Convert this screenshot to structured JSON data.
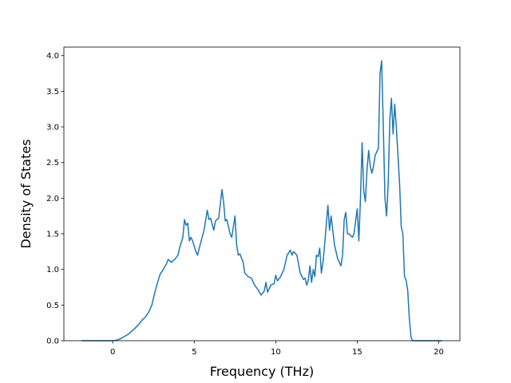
{
  "chart_data": {
    "type": "line",
    "xlabel": "Frequency (THz)",
    "ylabel": "Density of States",
    "x": [
      -1.9,
      0,
      0.2,
      0.5,
      0.8,
      1.0,
      1.3,
      1.6,
      1.8,
      2.0,
      2.2,
      2.4,
      2.5,
      2.7,
      2.9,
      3.1,
      3.3,
      3.4,
      3.6,
      3.8,
      4.0,
      4.1,
      4.3,
      4.4,
      4.5,
      4.6,
      4.7,
      4.8,
      4.9,
      5.1,
      5.2,
      5.4,
      5.6,
      5.8,
      5.9,
      6.0,
      6.2,
      6.3,
      6.5,
      6.7,
      6.8,
      6.9,
      7.0,
      7.2,
      7.3,
      7.5,
      7.6,
      7.7,
      7.8,
      8.0,
      8.1,
      8.3,
      8.5,
      8.7,
      8.9,
      9.1,
      9.3,
      9.4,
      9.5,
      9.7,
      9.9,
      10.0,
      10.1,
      10.3,
      10.5,
      10.7,
      10.9,
      11.0,
      11.1,
      11.3,
      11.5,
      11.7,
      11.8,
      11.9,
      12.0,
      12.1,
      12.2,
      12.3,
      12.4,
      12.5,
      12.6,
      12.7,
      12.8,
      12.9,
      13.0,
      13.2,
      13.3,
      13.4,
      13.6,
      13.8,
      14.0,
      14.1,
      14.2,
      14.3,
      14.4,
      14.5,
      14.7,
      14.8,
      15.0,
      15.1,
      15.2,
      15.3,
      15.4,
      15.5,
      15.6,
      15.7,
      15.8,
      15.9,
      16.0,
      16.1,
      16.3,
      16.4,
      16.5,
      16.6,
      16.7,
      16.8,
      16.9,
      17.0,
      17.1,
      17.2,
      17.3,
      17.4,
      17.5,
      17.6,
      17.7,
      17.8,
      17.9,
      18.0,
      18.1,
      18.2,
      18.3,
      18.4,
      20.2
    ],
    "series": [
      {
        "name": "DOS",
        "color": "#1f77b4",
        "values": [
          0,
          0,
          0.005,
          0.03,
          0.07,
          0.1,
          0.16,
          0.23,
          0.29,
          0.33,
          0.4,
          0.5,
          0.6,
          0.78,
          0.93,
          1.0,
          1.08,
          1.14,
          1.1,
          1.14,
          1.2,
          1.3,
          1.45,
          1.7,
          1.62,
          1.65,
          1.4,
          1.45,
          1.4,
          1.25,
          1.2,
          1.38,
          1.55,
          1.83,
          1.7,
          1.72,
          1.55,
          1.68,
          1.72,
          2.12,
          1.95,
          1.68,
          1.7,
          1.5,
          1.45,
          1.75,
          1.35,
          1.2,
          1.22,
          1.1,
          0.95,
          0.9,
          0.88,
          0.78,
          0.72,
          0.64,
          0.7,
          0.82,
          0.68,
          0.78,
          0.8,
          0.92,
          0.84,
          0.9,
          1.0,
          1.2,
          1.27,
          1.2,
          1.25,
          1.2,
          0.95,
          0.86,
          0.88,
          0.78,
          0.85,
          1.05,
          0.82,
          1.0,
          0.9,
          1.2,
          1.18,
          1.3,
          0.95,
          1.1,
          1.35,
          1.9,
          1.55,
          1.75,
          1.35,
          1.15,
          1.05,
          1.2,
          1.7,
          1.8,
          1.5,
          1.5,
          1.45,
          1.5,
          1.85,
          1.4,
          2.0,
          2.78,
          2.1,
          1.95,
          2.4,
          2.67,
          2.45,
          2.35,
          2.45,
          2.6,
          2.7,
          3.75,
          3.93,
          3.0,
          2.0,
          1.75,
          2.2,
          3.1,
          3.4,
          2.9,
          3.32,
          3.0,
          2.6,
          2.2,
          1.6,
          1.5,
          0.9,
          0.85,
          0.7,
          0.3,
          0.05,
          0,
          0
        ]
      }
    ],
    "xlim": [
      -3.0,
      21.3
    ],
    "ylim": [
      0,
      4.12
    ],
    "xticks": [
      0,
      5,
      10,
      15,
      20
    ],
    "yticks": [
      {
        "value": 0,
        "label": "0.0"
      },
      0.5,
      {
        "value": 1,
        "label": "1.0"
      },
      1.5,
      {
        "value": 2,
        "label": "2.0"
      },
      2.5,
      {
        "value": 3,
        "label": "3.0"
      },
      3.5,
      {
        "value": 4,
        "label": "4.0"
      }
    ]
  }
}
